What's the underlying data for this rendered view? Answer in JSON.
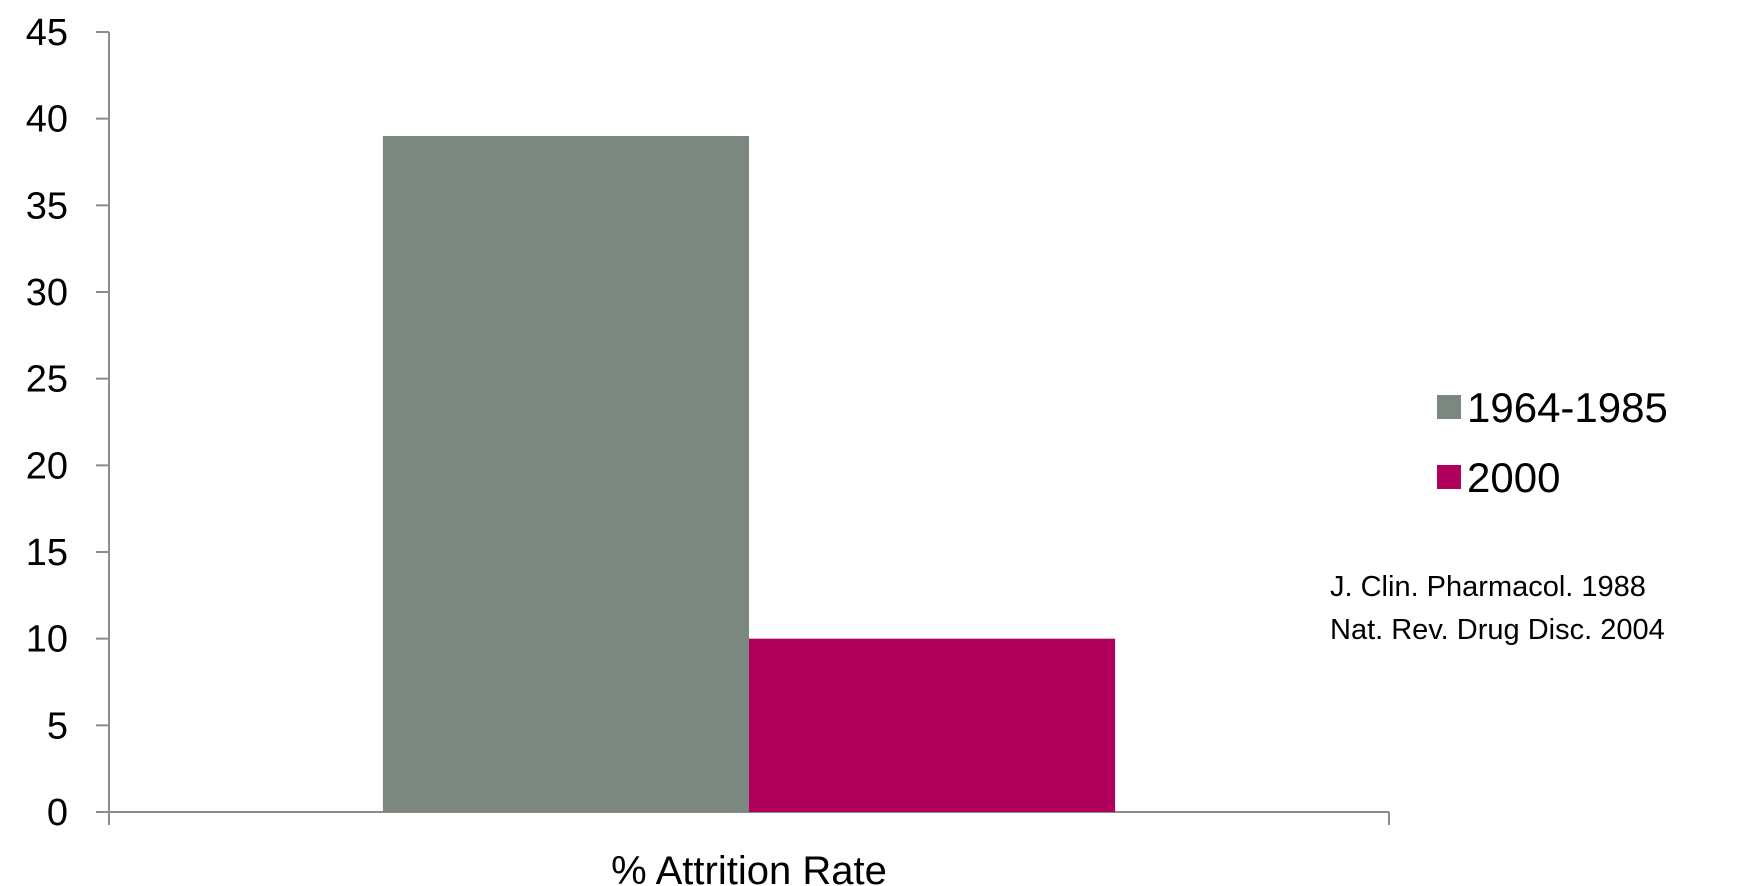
{
  "chart_data": {
    "type": "bar",
    "categories": [
      "% Attrition Rate"
    ],
    "series": [
      {
        "name": "1964-1985",
        "values": [
          39
        ],
        "color": "#7a8880"
      },
      {
        "name": "2000",
        "values": [
          10
        ],
        "color": "#b0005b"
      }
    ],
    "ylim": [
      0,
      45
    ],
    "yticks": [
      0,
      5,
      10,
      15,
      20,
      25,
      30,
      35,
      40,
      45
    ],
    "grid": false,
    "legend_position": "right",
    "annotations": [
      "J. Clin. Pharmacol. 1988",
      "Nat. Rev. Drug Disc. 2004"
    ]
  }
}
